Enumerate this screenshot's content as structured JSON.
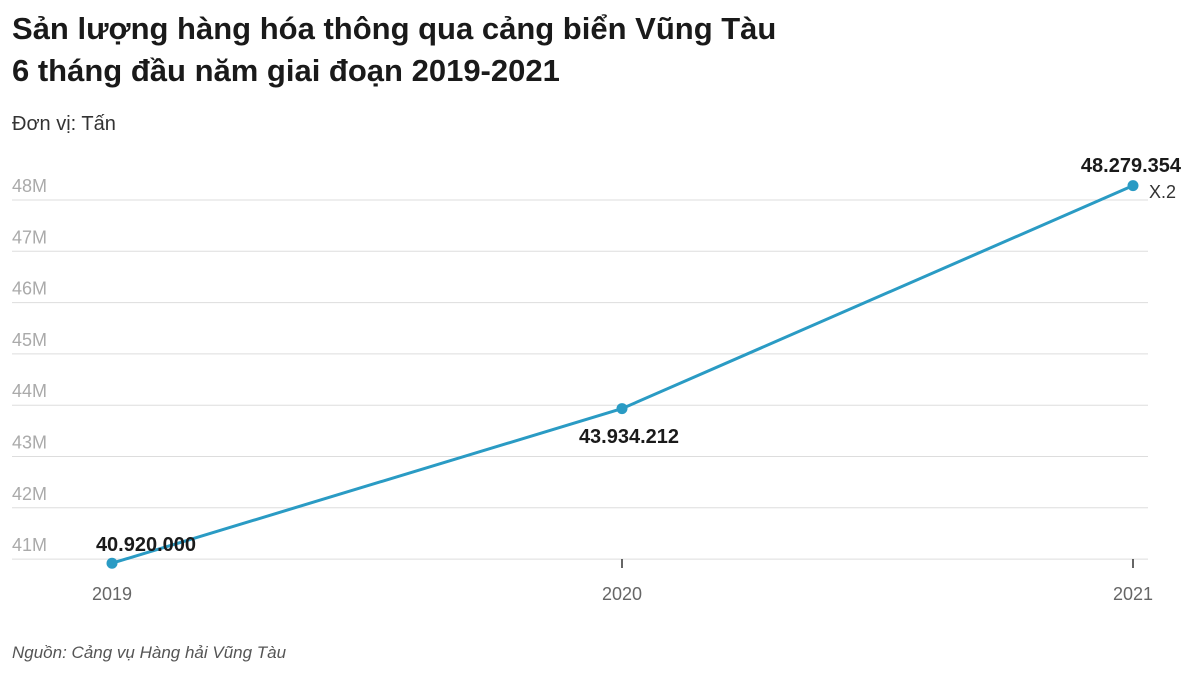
{
  "title_line1": "Sản lượng hàng hóa thông qua cảng biển Vũng Tàu",
  "title_line2": "6 tháng đầu năm giai đoạn 2019-2021",
  "unit": "Đơn vị: Tấn",
  "source": "Nguồn: Cảng vụ Hàng hải Vũng Tàu",
  "chart_data": {
    "type": "line",
    "categories": [
      "2019",
      "2020",
      "2021"
    ],
    "values": [
      40920000,
      43934212,
      48279354
    ],
    "data_labels": [
      "40.920.000",
      "43.934.212",
      "48.279.354"
    ],
    "annotation": "X.2",
    "yticks": [
      "41M",
      "42M",
      "43M",
      "44M",
      "45M",
      "46M",
      "47M",
      "48M"
    ],
    "ylim": [
      40920000,
      48279354
    ],
    "grid": true,
    "line_color": "#2a9bc4"
  }
}
